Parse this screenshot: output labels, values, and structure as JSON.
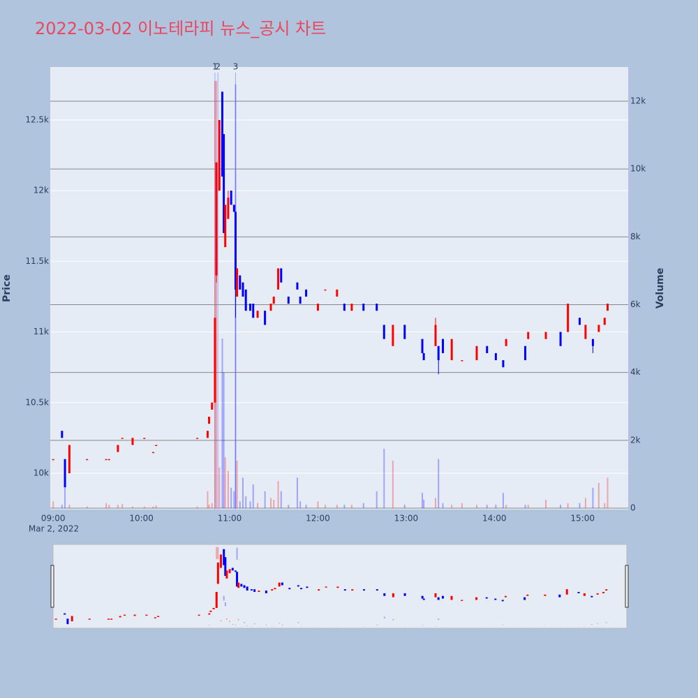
{
  "chart_data": {
    "type": "candlestick",
    "title": "2022-03-02 이노테라피 뉴스_공시 차트",
    "y_label": "Price",
    "y2_label": "Volume",
    "x_date_label": "Mar 2, 2022",
    "increasing_color": "#ff0000",
    "decreasing_color": "#0000ff",
    "xlim": [
      "08:58",
      "15:31"
    ],
    "xticks": [
      "09:00",
      "10:00",
      "11:00",
      "12:00",
      "13:00",
      "14:00",
      "15:00"
    ],
    "ylim": [
      9743,
      12875
    ],
    "yticks": [
      {
        "value": 10000,
        "label": "10k"
      },
      {
        "value": 10500,
        "label": "10.5k"
      },
      {
        "value": 11000,
        "label": "11k"
      },
      {
        "value": 11500,
        "label": "11.5k"
      },
      {
        "value": 12000,
        "label": "12k"
      },
      {
        "value": 12500,
        "label": "12.5k"
      }
    ],
    "y2lim": [
      -41,
      13009
    ],
    "y2ticks": [
      0,
      {
        "value": 2000,
        "label": "2k"
      },
      {
        "value": 4000,
        "label": "4k"
      },
      {
        "value": 6000,
        "label": "6k"
      },
      {
        "value": 8000,
        "label": "8k"
      },
      {
        "value": 10000,
        "label": "10k"
      },
      {
        "value": 12000,
        "label": "12k"
      }
    ],
    "annotations": [
      {
        "x": "10:50",
        "text": "1"
      },
      {
        "x": "10:52",
        "text": "2"
      },
      {
        "x": "11:04",
        "text": "3"
      }
    ],
    "x": [
      "09:00",
      "09:06",
      "09:08",
      "09:11",
      "09:23",
      "09:36",
      "09:38",
      "09:44",
      "09:47",
      "09:54",
      "10:02",
      "10:08",
      "10:10",
      "10:38",
      "10:45",
      "10:46",
      "10:48",
      "10:50",
      "10:51",
      "10:53",
      "10:55",
      "10:56",
      "10:57",
      "10:59",
      "11:01",
      "11:03",
      "11:04",
      "11:05",
      "11:07",
      "11:09",
      "11:11",
      "11:14",
      "11:16",
      "11:19",
      "11:24",
      "11:28",
      "11:30",
      "11:33",
      "11:35",
      "11:40",
      "11:46",
      "11:48",
      "11:52",
      "12:00",
      "12:05",
      "12:13",
      "12:18",
      "12:23",
      "12:31",
      "12:40",
      "12:45",
      "12:51",
      "12:59",
      "13:11",
      "13:12",
      "13:20",
      "13:22",
      "13:25",
      "13:31",
      "13:38",
      "13:48",
      "13:55",
      "14:01",
      "14:06",
      "14:08",
      "14:21",
      "14:23",
      "14:35",
      "14:45",
      "14:50",
      "14:58",
      "15:02",
      "15:07",
      "15:11",
      "15:15",
      "15:17"
    ],
    "open": [
      10100,
      10300,
      10100,
      10000,
      10100,
      10100,
      10100,
      10150,
      10250,
      10200,
      10250,
      10150,
      10200,
      10250,
      10250,
      10350,
      10450,
      10500,
      11400,
      12000,
      12700,
      12400,
      11600,
      11800,
      12000,
      11900,
      11850,
      11250,
      11400,
      11350,
      11300,
      11200,
      11200,
      11100,
      11150,
      11150,
      11200,
      11300,
      11450,
      11250,
      11350,
      11250,
      11300,
      11150,
      11300,
      11250,
      11200,
      11150,
      11200,
      11200,
      11050,
      10900,
      11050,
      10950,
      10850,
      10900,
      10900,
      10950,
      10800,
      10800,
      10800,
      10900,
      10850,
      10800,
      10900,
      10900,
      10950,
      10950,
      11000,
      11000,
      11100,
      10950,
      10950,
      11000,
      11050,
      11150
    ],
    "high": [
      10100,
      10300,
      10100,
      10200,
      10100,
      10100,
      10100,
      10200,
      10250,
      10250,
      10250,
      10150,
      10200,
      10250,
      10300,
      10400,
      10500,
      11100,
      12200,
      12500,
      12700,
      12400,
      11900,
      12000,
      12000,
      11900,
      11850,
      11450,
      11400,
      11350,
      11300,
      11200,
      11200,
      11150,
      11150,
      11200,
      11250,
      11450,
      11450,
      11250,
      11350,
      11250,
      11300,
      11200,
      11300,
      11300,
      11200,
      11200,
      11200,
      11200,
      11050,
      11050,
      11050,
      10950,
      10850,
      11100,
      10900,
      10950,
      10950,
      10800,
      10900,
      10900,
      10850,
      10800,
      10950,
      10900,
      11000,
      11000,
      11000,
      11200,
      11100,
      11050,
      10950,
      11050,
      11100,
      11200
    ],
    "low": [
      10100,
      10250,
      9900,
      10000,
      10100,
      10100,
      10100,
      10150,
      10250,
      10200,
      10250,
      10150,
      10200,
      10250,
      10250,
      10350,
      10450,
      10500,
      11350,
      12000,
      12100,
      11700,
      11600,
      11800,
      11900,
      11850,
      11100,
      11250,
      11300,
      11250,
      11150,
      11150,
      11100,
      11100,
      11050,
      11150,
      11200,
      11300,
      11350,
      11200,
      11300,
      11200,
      11250,
      11150,
      11300,
      11250,
      11150,
      11150,
      11150,
      11150,
      10950,
      10900,
      10950,
      10850,
      10800,
      10900,
      10700,
      10850,
      10800,
      10800,
      10800,
      10850,
      10800,
      10750,
      10900,
      10800,
      10950,
      10950,
      10900,
      11000,
      11050,
      10950,
      10850,
      11000,
      11050,
      11150
    ],
    "close": [
      10100,
      10250,
      9900,
      10200,
      10100,
      10100,
      10100,
      10200,
      10250,
      10250,
      10250,
      10150,
      10200,
      10250,
      10300,
      10400,
      10500,
      11100,
      12200,
      12500,
      12100,
      11700,
      11900,
      11950,
      11900,
      11850,
      11300,
      11450,
      11300,
      11250,
      11150,
      11150,
      11100,
      11150,
      11050,
      11200,
      11250,
      11450,
      11350,
      11200,
      11300,
      11200,
      11250,
      11200,
      11300,
      11300,
      11150,
      11200,
      11150,
      11150,
      10950,
      11050,
      10950,
      10850,
      10800,
      11050,
      10800,
      10850,
      10950,
      10800,
      10900,
      10850,
      10800,
      10750,
      10950,
      10800,
      11000,
      11000,
      10900,
      11200,
      11050,
      11050,
      10900,
      11050,
      11100,
      11200
    ],
    "volume": [
      200,
      100,
      600,
      100,
      50,
      150,
      100,
      100,
      120,
      50,
      50,
      50,
      80,
      50,
      500,
      100,
      150,
      12600,
      12600,
      1200,
      5000,
      4000,
      1500,
      1100,
      600,
      500,
      12500,
      1400,
      200,
      900,
      350,
      200,
      700,
      150,
      500,
      300,
      250,
      800,
      500,
      100,
      900,
      200,
      100,
      200,
      100,
      100,
      100,
      100,
      150,
      500,
      1750,
      1400,
      100,
      450,
      250,
      300,
      1450,
      150,
      100,
      150,
      100,
      100,
      100,
      450,
      100,
      100,
      100,
      250,
      100,
      150,
      150,
      300,
      600,
      750,
      150,
      900
    ]
  }
}
